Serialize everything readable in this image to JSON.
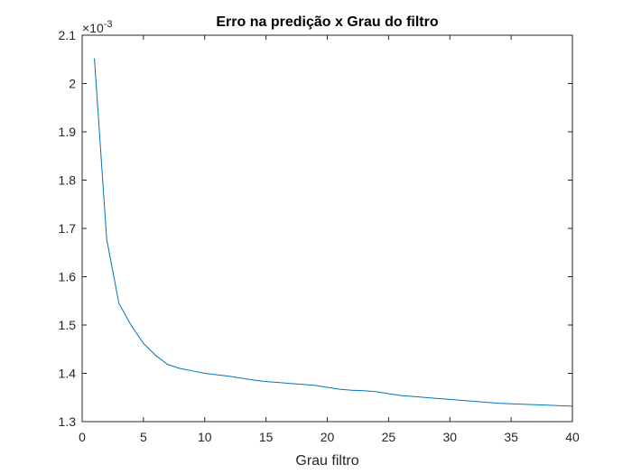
{
  "chart_data": {
    "type": "line",
    "title": "Erro na predição x Grau do filtro",
    "xlabel": "Grau filtro",
    "ylabel": "",
    "xlim": [
      0,
      40
    ],
    "ylim": [
      1.3,
      2.1
    ],
    "y_multiplier": {
      "base": "×10",
      "exponent": "-3"
    },
    "xticks": [
      0,
      5,
      10,
      15,
      20,
      25,
      30,
      35,
      40
    ],
    "xtick_labels": [
      "0",
      "5",
      "10",
      "15",
      "20",
      "25",
      "30",
      "35",
      "40"
    ],
    "yticks": [
      1.3,
      1.4,
      1.5,
      1.6,
      1.7,
      1.8,
      1.9,
      2.0,
      2.1
    ],
    "ytick_labels": [
      "1.3",
      "1.4",
      "1.5",
      "1.6",
      "1.7",
      "1.8",
      "1.9",
      "2",
      "2.1"
    ],
    "grid": false,
    "series": [
      {
        "color": "#0072BD",
        "x": [
          1,
          2,
          3,
          4,
          5,
          6,
          7,
          8,
          9,
          10,
          11,
          12,
          13,
          14,
          15,
          16,
          17,
          18,
          19,
          20,
          21,
          22,
          23,
          24,
          25,
          26,
          27,
          28,
          29,
          30,
          31,
          32,
          33,
          34,
          35,
          36,
          37,
          38,
          39,
          40
        ],
        "y": [
          2.052,
          1.678,
          1.545,
          1.499,
          1.462,
          1.437,
          1.418,
          1.41,
          1.405,
          1.4,
          1.397,
          1.394,
          1.39,
          1.386,
          1.383,
          1.381,
          1.379,
          1.377,
          1.375,
          1.371,
          1.367,
          1.365,
          1.364,
          1.362,
          1.358,
          1.354,
          1.352,
          1.35,
          1.348,
          1.346,
          1.344,
          1.342,
          1.34,
          1.338,
          1.337,
          1.336,
          1.335,
          1.334,
          1.333,
          1.332
        ]
      }
    ]
  }
}
